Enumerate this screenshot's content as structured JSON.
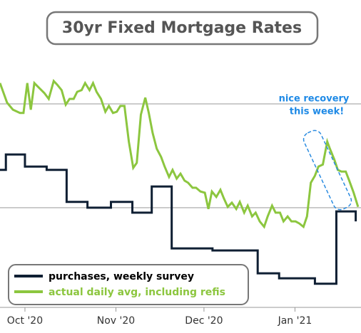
{
  "chart_data": {
    "type": "line",
    "title": "30yr Fixed Mortgage Rates",
    "annotation": [
      "nice recovery",
      "this week!"
    ],
    "xlim": [
      0,
      123
    ],
    "xticks": [
      {
        "value": 8.5,
        "label": "Oct '20"
      },
      {
        "value": 39.5,
        "label": "Nov '20"
      },
      {
        "value": 69.5,
        "label": "Dec '20"
      },
      {
        "value": 100.5,
        "label": "Jan '21"
      }
    ],
    "ylim": [
      2.51,
      3.25
    ],
    "yticks": [
      3,
      2.75
    ],
    "grid": true,
    "legend": "lower left",
    "series": [
      {
        "name": "purchases, weekly survey",
        "color": "#0f1f33",
        "step": true,
        "x": [
          0,
          2.0,
          8.5,
          15.9,
          22.7,
          29.8,
          37.8,
          45.1,
          51.7,
          58.5,
          72.4,
          87.8,
          95.1,
          107.3,
          114.6,
          121.2
        ],
        "values": [
          2.841,
          2.878,
          2.849,
          2.841,
          2.764,
          2.75,
          2.764,
          2.738,
          2.801,
          2.652,
          2.647,
          2.592,
          2.58,
          2.567,
          2.741,
          2.717
        ]
      },
      {
        "name": "actual daily avg, including refis",
        "color": "#8cc63f",
        "step": false,
        "x": [
          0,
          2.4,
          4.4,
          6.8,
          8.0,
          9.3,
          10.5,
          11.7,
          13.4,
          15.1,
          16.6,
          18.3,
          19.5,
          21.0,
          22.4,
          23.7,
          25.1,
          26.3,
          27.8,
          29.0,
          30.5,
          31.7,
          32.9,
          34.4,
          35.9,
          37.1,
          38.5,
          39.8,
          41.0,
          42.4,
          43.9,
          45.4,
          46.6,
          48.0,
          49.5,
          50.7,
          52.0,
          53.4,
          54.9,
          56.1,
          57.6,
          58.8,
          60.2,
          61.5,
          62.9,
          64.1,
          65.6,
          66.8,
          68.3,
          69.8,
          71.0,
          72.2,
          73.7,
          75.1,
          76.3,
          77.6,
          79.0,
          80.5,
          81.7,
          83.2,
          84.4,
          85.9,
          87.1,
          88.5,
          90.0,
          91.2,
          92.7,
          93.9,
          95.4,
          96.6,
          98.0,
          99.3,
          100.7,
          102.0,
          103.4,
          104.6,
          105.9,
          107.3,
          108.5,
          110.0,
          111.5,
          112.4,
          113.9,
          115.1,
          116.3,
          117.8,
          119.0,
          120.5,
          122.0
        ],
        "values": [
          3.05,
          3.003,
          2.986,
          2.978,
          2.978,
          3.05,
          2.986,
          3.05,
          3.038,
          3.026,
          3.012,
          3.055,
          3.046,
          3.033,
          2.998,
          3.012,
          3.012,
          3.029,
          3.033,
          3.05,
          3.033,
          3.05,
          3.029,
          3.012,
          2.981,
          2.995,
          2.978,
          2.981,
          2.995,
          2.995,
          2.909,
          2.846,
          2.858,
          2.974,
          3.015,
          2.978,
          2.93,
          2.892,
          2.872,
          2.849,
          2.824,
          2.841,
          2.82,
          2.832,
          2.815,
          2.81,
          2.798,
          2.798,
          2.789,
          2.786,
          2.747,
          2.789,
          2.776,
          2.793,
          2.772,
          2.752,
          2.762,
          2.747,
          2.764,
          2.738,
          2.755,
          2.729,
          2.738,
          2.717,
          2.704,
          2.729,
          2.755,
          2.738,
          2.738,
          2.717,
          2.729,
          2.717,
          2.717,
          2.712,
          2.704,
          2.729,
          2.81,
          2.827,
          2.849,
          2.854,
          2.909,
          2.892,
          2.866,
          2.841,
          2.837,
          2.837,
          2.815,
          2.786,
          2.752
        ]
      }
    ]
  }
}
